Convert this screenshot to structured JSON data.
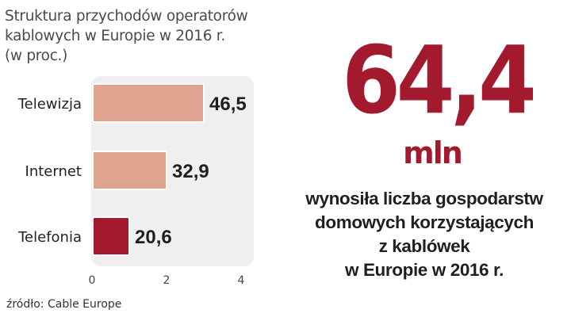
{
  "chart_data": {
    "type": "bar",
    "orientation": "horizontal",
    "title_lines": [
      "Struktura przychodów operatorów",
      "kablowych w Europie w 2016 r.",
      "(w proc.)"
    ],
    "categories": [
      "Telewizja",
      "Internet",
      "Telefonia"
    ],
    "values": [
      46.5,
      32.9,
      20.6
    ],
    "value_labels": [
      "46,5",
      "32,9",
      "20,6"
    ],
    "axis_ticks": [
      "0",
      "2",
      "4"
    ],
    "grid": false,
    "colors": {
      "Telewizja": "#dfa48f",
      "Internet": "#dfa48f",
      "Telefonia": "#a3192d",
      "plot_background": "#efefef"
    }
  },
  "headline": {
    "value": "64,4",
    "unit": "mln",
    "description_lines": [
      "wynosiła liczba gospodarstw",
      "domowych korzystających",
      "z kablówek",
      "w Europie w 2016 r."
    ],
    "accent_color": "#a3192d"
  },
  "source": "źródło: Cable Europe"
}
